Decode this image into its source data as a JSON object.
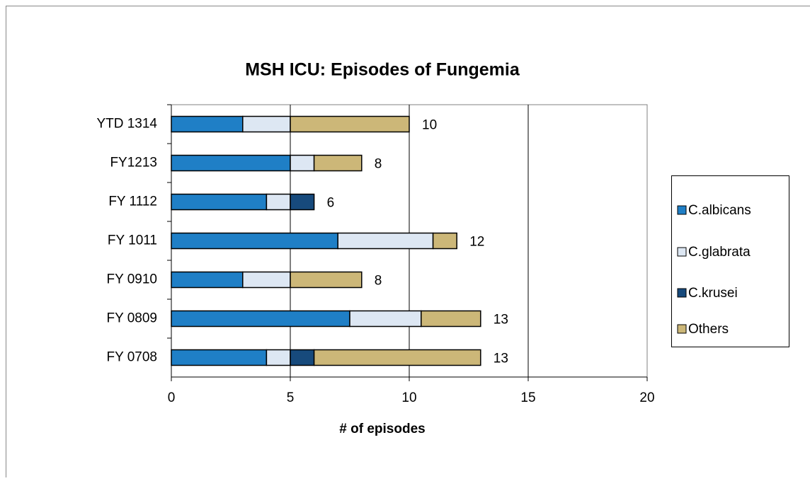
{
  "chart_data": {
    "type": "stacked-barh",
    "title": "MSH ICU: Episodes of Fungemia",
    "xlabel": "# of episodes",
    "categories": [
      "YTD 1314",
      "FY1213",
      "FY 1112",
      "FY 1011",
      "FY 0910",
      "FY 0809",
      "FY 0708"
    ],
    "series": [
      {
        "name": "C.albicans",
        "color": "#1f7fc6",
        "values": [
          3,
          5,
          4,
          7,
          3,
          7.5,
          4
        ]
      },
      {
        "name": "C.glabrata",
        "color": "#dde7f3",
        "values": [
          2,
          1,
          1,
          4,
          2,
          3,
          1
        ]
      },
      {
        "name": "C.krusei",
        "color": "#174a7c",
        "values": [
          0,
          0,
          1,
          0,
          0,
          0,
          1
        ]
      },
      {
        "name": "Others",
        "color": "#ccb778",
        "values": [
          5,
          2,
          0,
          1,
          3,
          2.5,
          7
        ]
      }
    ],
    "totals": [
      10,
      8,
      6,
      12,
      8,
      13,
      13
    ],
    "xlim": [
      0,
      20
    ],
    "xticks": [
      0,
      5,
      10,
      15,
      20
    ],
    "grid": true,
    "legend": "right"
  }
}
